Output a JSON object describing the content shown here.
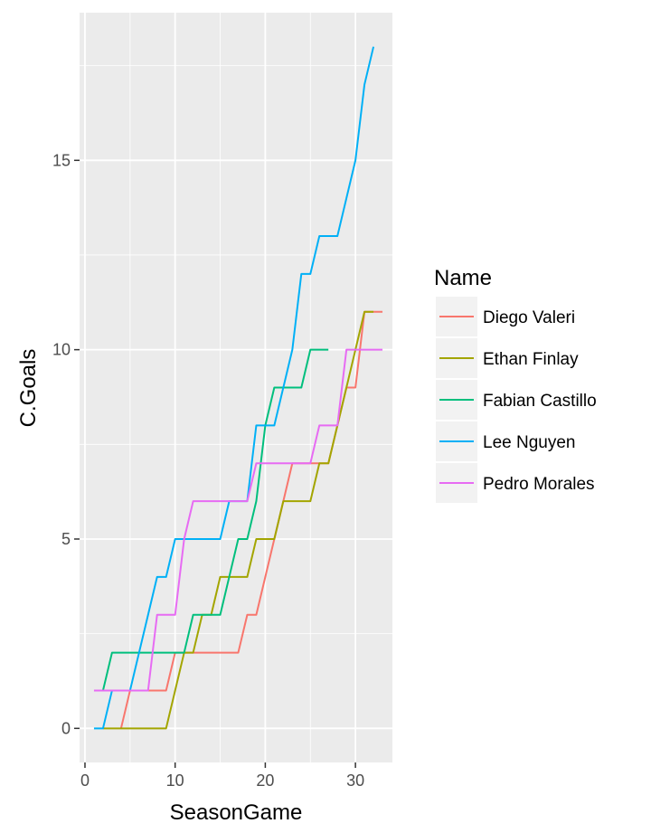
{
  "chart_data": {
    "type": "line",
    "step": true,
    "xlabel": "SeasonGame",
    "ylabel": "C.Goals",
    "xlim": [
      -0.6,
      34.1
    ],
    "ylim": [
      -0.9,
      18.9
    ],
    "x_ticks": [
      0,
      10,
      20,
      30
    ],
    "y_ticks": [
      0,
      5,
      10,
      15
    ],
    "grid": true,
    "panel_background": "#ebebeb",
    "legend": {
      "title": "Name",
      "position": "right"
    },
    "series": [
      {
        "name": "Diego Valeri",
        "color": "#F8766D",
        "x": [
          4,
          5,
          6,
          7,
          8,
          9,
          10,
          11,
          12,
          13,
          14,
          15,
          16,
          17,
          18,
          19,
          20,
          21,
          22,
          23,
          24,
          25,
          26,
          27,
          28,
          29,
          30,
          31,
          32,
          33
        ],
        "y": [
          0,
          1,
          1,
          1,
          1,
          1,
          2,
          2,
          2,
          2,
          2,
          2,
          2,
          2,
          3,
          3,
          4,
          5,
          6,
          7,
          7,
          7,
          7,
          7,
          8,
          9,
          9,
          11,
          11,
          11
        ]
      },
      {
        "name": "Ethan Finlay",
        "color": "#A3A500",
        "x": [
          2,
          3,
          4,
          5,
          6,
          7,
          8,
          9,
          10,
          11,
          12,
          13,
          14,
          15,
          16,
          17,
          18,
          19,
          20,
          21,
          22,
          23,
          24,
          25,
          26,
          27,
          28,
          29,
          30,
          31,
          32
        ],
        "y": [
          0,
          0,
          0,
          0,
          0,
          0,
          0,
          0,
          1,
          2,
          2,
          3,
          3,
          4,
          4,
          4,
          4,
          5,
          5,
          5,
          6,
          6,
          6,
          6,
          7,
          7,
          8,
          9,
          10,
          11,
          11
        ]
      },
      {
        "name": "Fabian Castillo",
        "color": "#00BF7D",
        "x": [
          2,
          3,
          4,
          5,
          6,
          7,
          8,
          9,
          10,
          11,
          12,
          13,
          14,
          15,
          16,
          17,
          18,
          19,
          20,
          21,
          22,
          23,
          24,
          25,
          26,
          27
        ],
        "y": [
          1,
          2,
          2,
          2,
          2,
          2,
          2,
          2,
          2,
          2,
          3,
          3,
          3,
          3,
          4,
          5,
          5,
          6,
          8,
          9,
          9,
          9,
          9,
          10,
          10,
          10
        ]
      },
      {
        "name": "Lee Nguyen",
        "color": "#00B0F6",
        "x": [
          1,
          2,
          3,
          4,
          5,
          6,
          7,
          8,
          9,
          10,
          11,
          12,
          13,
          14,
          15,
          16,
          17,
          18,
          19,
          20,
          21,
          22,
          23,
          24,
          25,
          26,
          27,
          28,
          29,
          30,
          31,
          32
        ],
        "y": [
          0,
          0,
          1,
          1,
          1,
          2,
          3,
          4,
          4,
          5,
          5,
          5,
          5,
          5,
          5,
          6,
          6,
          6,
          8,
          8,
          8,
          9,
          10,
          12,
          12,
          13,
          13,
          13,
          14,
          15,
          17,
          18
        ]
      },
      {
        "name": "Pedro Morales",
        "color": "#E76BF3",
        "x": [
          1,
          2,
          3,
          4,
          5,
          6,
          7,
          8,
          9,
          10,
          11,
          12,
          13,
          14,
          15,
          16,
          17,
          18,
          19,
          20,
          21,
          22,
          23,
          24,
          25,
          26,
          27,
          28,
          29,
          30,
          31,
          32,
          33
        ],
        "y": [
          1,
          1,
          1,
          1,
          1,
          1,
          1,
          3,
          3,
          3,
          5,
          6,
          6,
          6,
          6,
          6,
          6,
          6,
          7,
          7,
          7,
          7,
          7,
          7,
          7,
          8,
          8,
          8,
          10,
          10,
          10,
          10,
          10
        ]
      }
    ]
  }
}
